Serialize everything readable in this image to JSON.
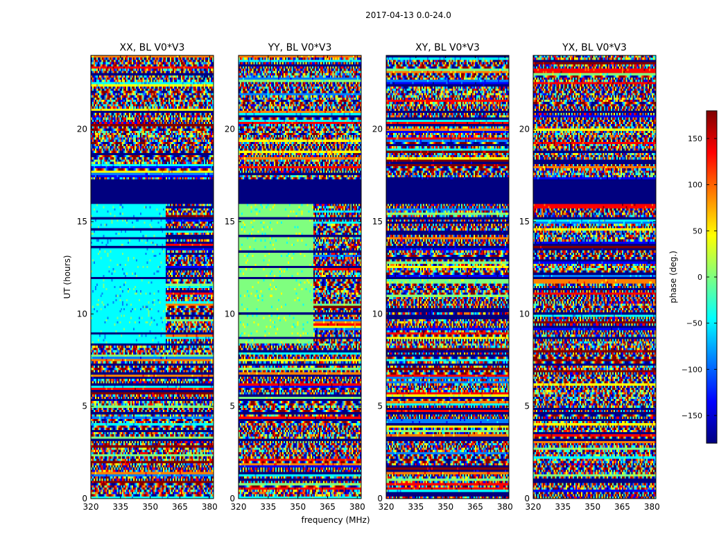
{
  "figure_title": "2017-04-13 0.0-24.0",
  "chart_data": {
    "type": "heatmap",
    "title": "2017-04-13 0.0-24.0",
    "xlabel": "frequency (MHz)",
    "ylabel": "UT (hours)",
    "xlim": [
      320,
      382
    ],
    "ylim": [
      0,
      24
    ],
    "xticks": [
      320,
      335,
      350,
      365,
      380
    ],
    "yticks": [
      0,
      5,
      10,
      15,
      20
    ],
    "panels": [
      {
        "title": "XX, BL V0*V3",
        "pol": "XX"
      },
      {
        "title": "YY, BL V0*V3",
        "pol": "YY"
      },
      {
        "title": "XY, BL V0*V3",
        "pol": "XY"
      },
      {
        "title": "YX, BL V0*V3",
        "pol": "YX"
      }
    ],
    "colorbar": {
      "label": "phase (deg.)",
      "range": [
        -180,
        180
      ],
      "ticks": [
        150,
        100,
        50,
        0,
        -50,
        -100,
        -150
      ],
      "colormap": "jet"
    },
    "flagged_ut_ranges": [
      [
        16.0,
        17.3
      ],
      [
        15.1,
        15.2
      ],
      [
        11.9,
        12.0
      ],
      [
        7.2,
        7.3
      ],
      [
        4.6,
        4.7
      ],
      [
        3.1,
        3.2
      ],
      [
        0.3,
        0.4
      ]
    ]
  },
  "colors": {
    "jet": [
      "#00007f",
      "#0000ff",
      "#007fff",
      "#00ffff",
      "#7fff7f",
      "#ffff00",
      "#ff7f00",
      "#ff0000",
      "#7f0000"
    ],
    "flagged": "#00007f",
    "axis": "#000000"
  }
}
